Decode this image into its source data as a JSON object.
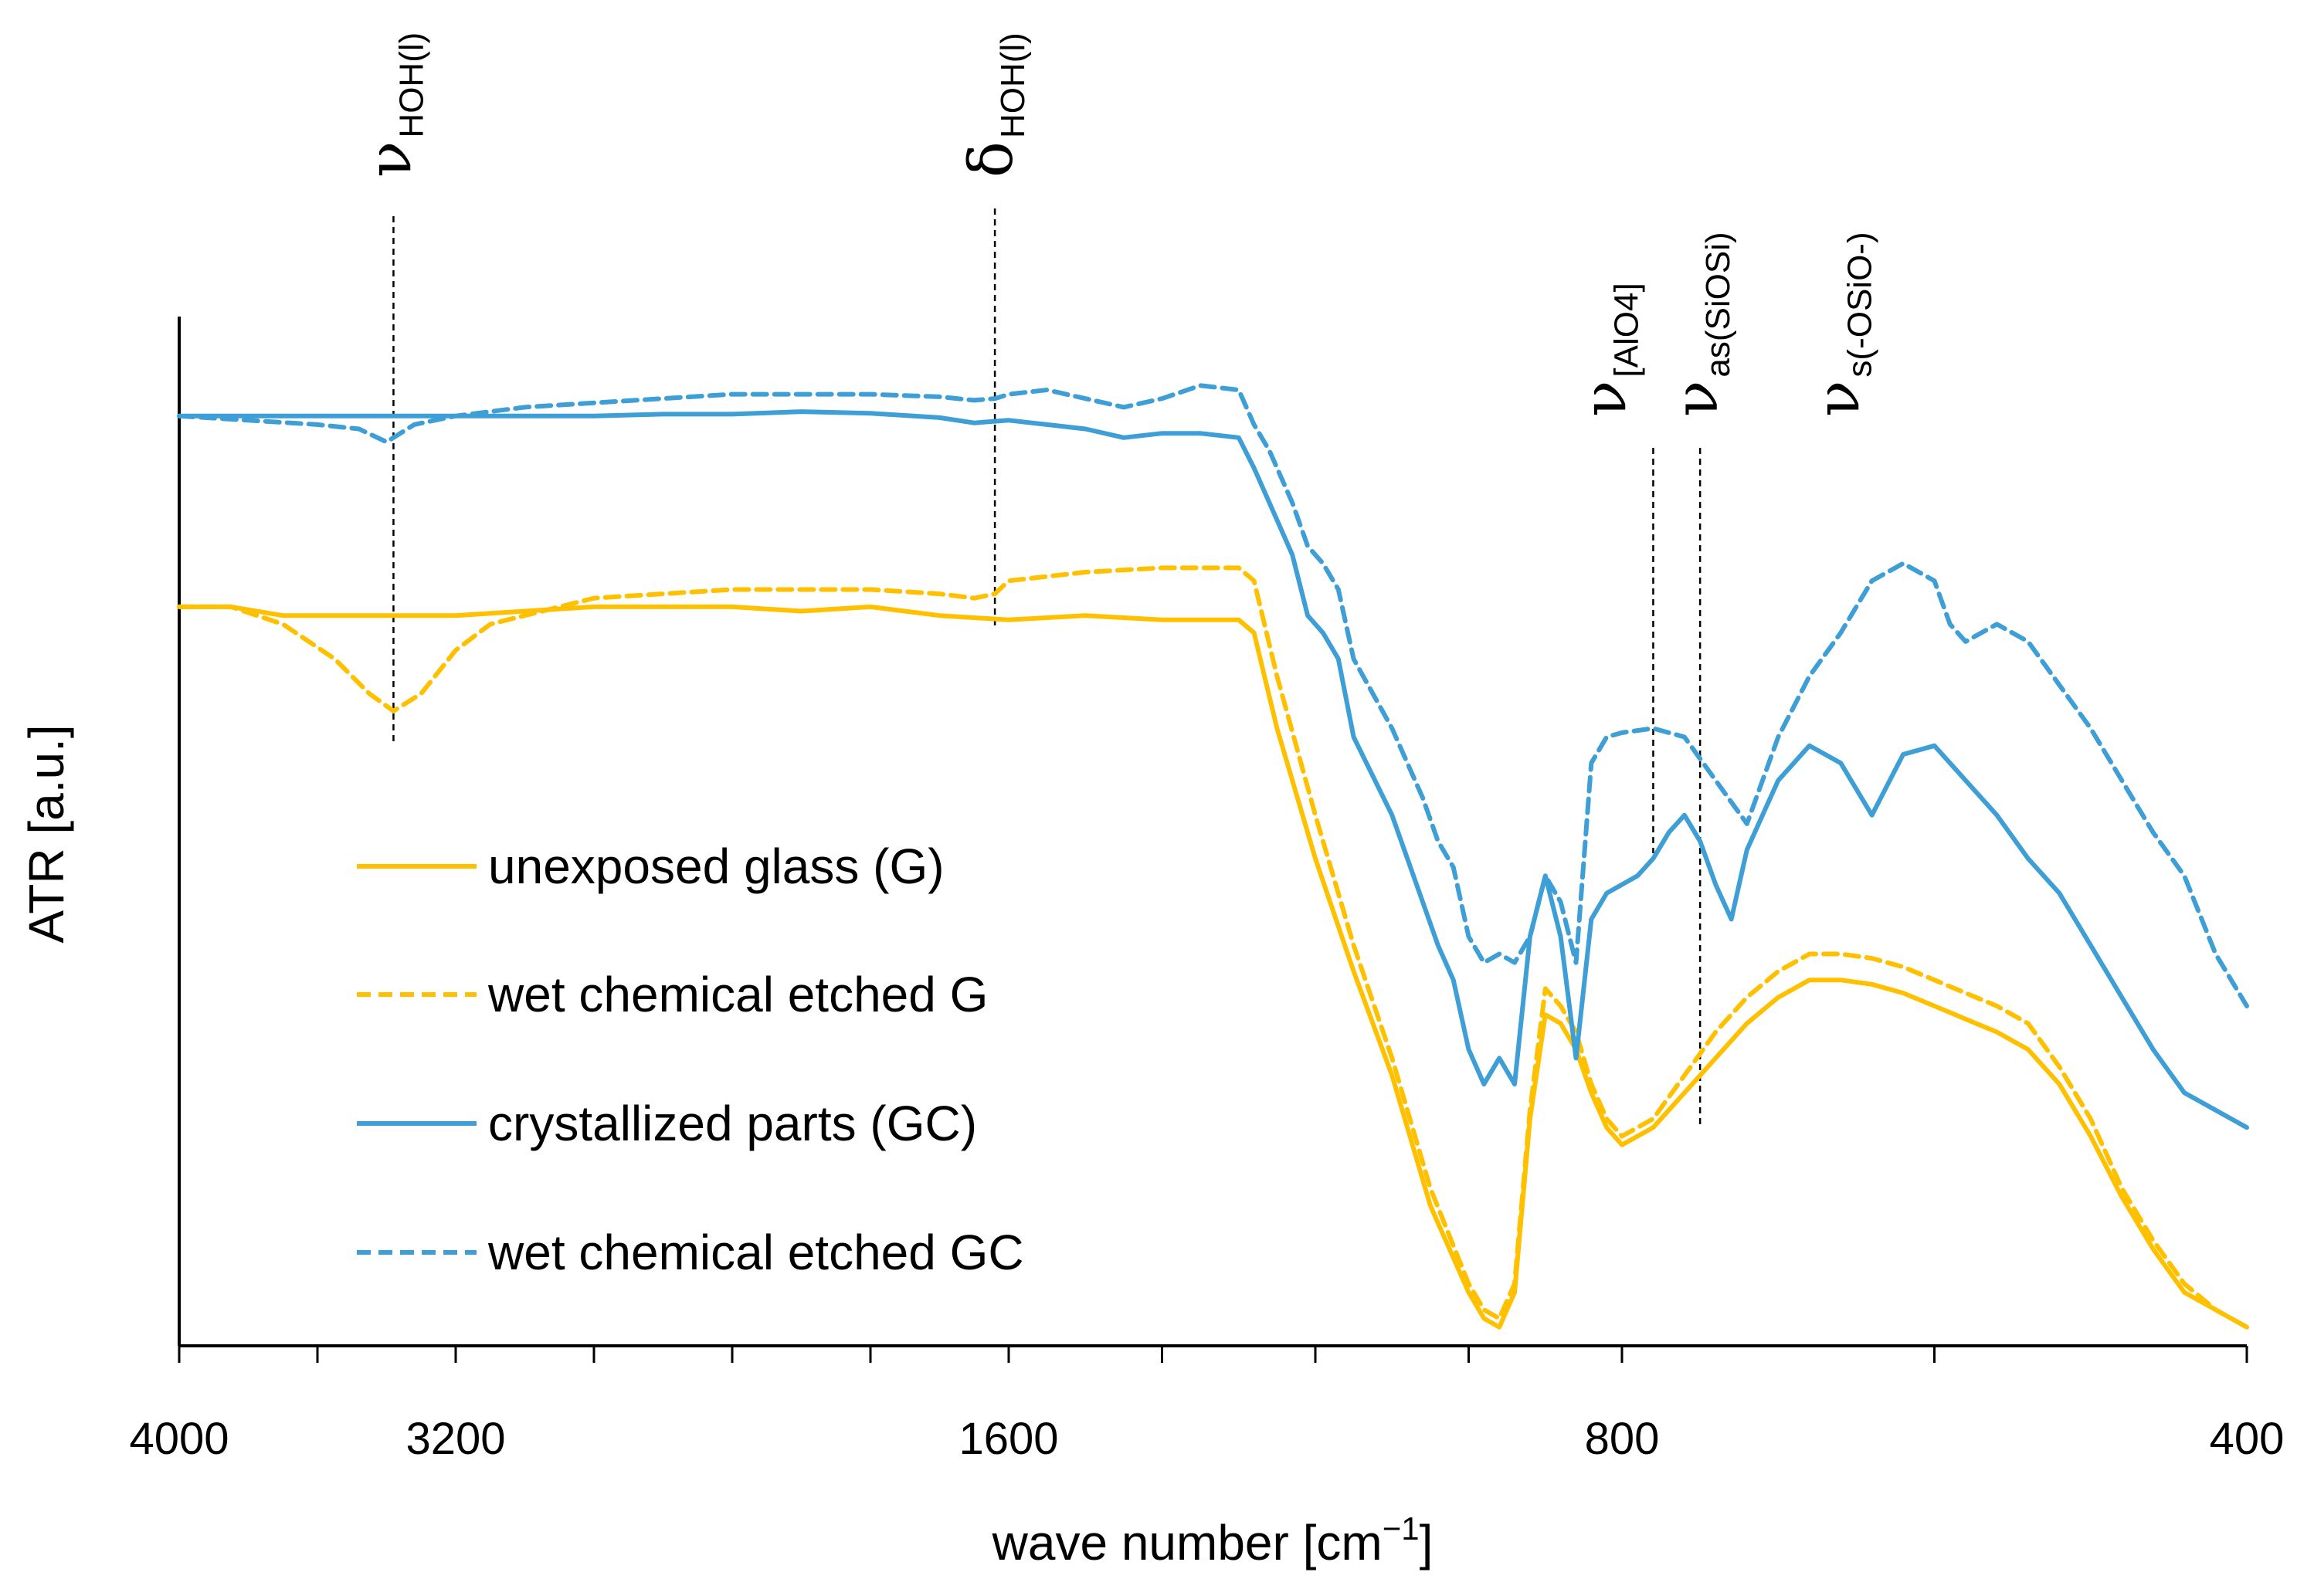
{
  "chart_data": {
    "type": "line",
    "xlabel_main": "wave number [cm",
    "xlabel_sup": "−1",
    "xlabel_end": "]",
    "ylabel": "ATR [a.u.]",
    "x_scale": "piecewise-linear (4000–1600, 1600–800, 800–400)",
    "x_ticks": [
      {
        "value": 4000,
        "label": "4000"
      },
      {
        "value": 3200,
        "label": "3200"
      },
      {
        "value": 1600,
        "label": "1600"
      },
      {
        "value": 800,
        "label": "800"
      },
      {
        "value": 400,
        "label": "400"
      }
    ],
    "minor_ticks": [
      3600,
      2800,
      2400,
      2000,
      1400,
      1200,
      1000,
      600
    ],
    "annotations": [
      {
        "wavenumber": 3380,
        "symbol": "ν",
        "subscript": "HOH(l)"
      },
      {
        "wavenumber": 1640,
        "symbol": "δ",
        "subscript": "HOH(l)"
      },
      {
        "wavenumber": 780,
        "symbol": "ν",
        "subscript": "[AlO4]"
      },
      {
        "wavenumber": 750,
        "symbol": "ν",
        "subscript": "as(SiOSi)"
      },
      {
        "wavenumber": 700,
        "symbol": "ν",
        "subscript": "s(-OSiO-)"
      }
    ],
    "colors": {
      "glass": "#FFC000",
      "gc": "#3E9ED6"
    },
    "series": [
      {
        "name": "unexposed glass (G)",
        "color": "#FFC000",
        "dash": "solid",
        "x": [
          4000,
          3850,
          3700,
          3500,
          3400,
          3200,
          3000,
          2800,
          2600,
          2400,
          2200,
          2000,
          1800,
          1600,
          1500,
          1400,
          1300,
          1280,
          1250,
          1200,
          1150,
          1100,
          1050,
          1000,
          980,
          960,
          940,
          920,
          900,
          880,
          860,
          840,
          820,
          800,
          780,
          760,
          740,
          720,
          700,
          680,
          660,
          640,
          620,
          600,
          580,
          560,
          540,
          520,
          500,
          480,
          460,
          440,
          420,
          400
        ],
        "y": [
          84,
          84,
          83,
          83,
          83,
          83,
          83.5,
          84,
          84,
          84,
          83.5,
          84,
          83,
          82.5,
          83,
          82.5,
          82.5,
          81,
          70,
          55,
          42,
          30,
          15,
          5,
          2,
          1,
          5,
          25,
          37,
          36,
          33,
          28,
          24,
          22,
          24,
          28,
          32,
          36,
          39,
          41,
          41,
          40.5,
          39.5,
          38,
          36.5,
          35,
          33,
          29,
          23,
          16,
          10,
          5,
          3,
          1
        ]
      },
      {
        "name": "wet chemical etched G",
        "color": "#FFC000",
        "dash": "dashed",
        "x": [
          4000,
          3850,
          3700,
          3550,
          3450,
          3380,
          3300,
          3200,
          3100,
          3000,
          2800,
          2600,
          2400,
          2200,
          2000,
          1800,
          1700,
          1640,
          1600,
          1500,
          1400,
          1300,
          1280,
          1250,
          1200,
          1150,
          1100,
          1050,
          1000,
          980,
          960,
          940,
          920,
          900,
          880,
          860,
          840,
          820,
          800,
          780,
          760,
          740,
          720,
          700,
          680,
          660,
          640,
          620,
          600,
          580,
          560,
          540,
          520,
          500,
          480,
          460,
          440,
          420,
          400
        ],
        "y": [
          84,
          84,
          82,
          78,
          74,
          72,
          74,
          79,
          82,
          83,
          85,
          85.5,
          86,
          86,
          86,
          85.5,
          85,
          85.5,
          87,
          88,
          88.5,
          88.5,
          87,
          76,
          60,
          45,
          32,
          17,
          6,
          3,
          2,
          6,
          26,
          40,
          38,
          35,
          29,
          25,
          23,
          25,
          30,
          35,
          39,
          42,
          44,
          44,
          43.5,
          42.5,
          41,
          39.5,
          38,
          36,
          31,
          25,
          17,
          11,
          6,
          3,
          1
        ]
      },
      {
        "name": "crystallized parts (GC)",
        "color": "#3E9ED6",
        "dash": "solid",
        "x": [
          4000,
          3800,
          3600,
          3400,
          3200,
          3000,
          2800,
          2600,
          2400,
          2200,
          2000,
          1800,
          1700,
          1600,
          1500,
          1450,
          1400,
          1350,
          1300,
          1280,
          1260,
          1230,
          1210,
          1190,
          1170,
          1150,
          1100,
          1060,
          1040,
          1020,
          1000,
          980,
          960,
          940,
          920,
          900,
          880,
          860,
          840,
          820,
          800,
          790,
          780,
          770,
          760,
          750,
          740,
          730,
          720,
          700,
          680,
          660,
          640,
          620,
          600,
          590,
          580,
          560,
          540,
          520,
          500,
          480,
          460,
          440,
          420,
          400
        ],
        "y": [
          106,
          106,
          106,
          106,
          106,
          106,
          106,
          106.2,
          106.2,
          106.5,
          106.3,
          105.8,
          105.2,
          105.5,
          104.5,
          103.5,
          104,
          104,
          103.5,
          100,
          96,
          90,
          83,
          81,
          78,
          69,
          60,
          50,
          45,
          41,
          33,
          29,
          32,
          29,
          46,
          53,
          46,
          32,
          48,
          51,
          52,
          53,
          55,
          58,
          60,
          57,
          52,
          48,
          56,
          64,
          68,
          66,
          60,
          67,
          68,
          66,
          64,
          60,
          55,
          51,
          45,
          39,
          33,
          28,
          26,
          24
        ]
      },
      {
        "name": "wet chemical etched GC",
        "color": "#3E9ED6",
        "dash": "dashed",
        "x": [
          4000,
          3800,
          3600,
          3480,
          3400,
          3320,
          3200,
          3000,
          2800,
          2600,
          2400,
          2200,
          2000,
          1800,
          1700,
          1640,
          1600,
          1550,
          1500,
          1450,
          1400,
          1350,
          1300,
          1280,
          1260,
          1230,
          1210,
          1190,
          1170,
          1150,
          1100,
          1060,
          1040,
          1020,
          1000,
          980,
          960,
          940,
          920,
          900,
          880,
          860,
          840,
          820,
          800,
          780,
          760,
          740,
          720,
          700,
          680,
          660,
          640,
          620,
          600,
          590,
          580,
          560,
          540,
          520,
          500,
          480,
          460,
          440,
          420,
          400
        ],
        "y": [
          106,
          105.5,
          105,
          104.5,
          103,
          105,
          106,
          107,
          107.5,
          108,
          108.5,
          108.5,
          108.5,
          108.2,
          107.8,
          108,
          108.5,
          109,
          108,
          107,
          108,
          109.5,
          109,
          105,
          102,
          96,
          91,
          89,
          86,
          78,
          70,
          62,
          57,
          54,
          46,
          43,
          44,
          43,
          46,
          53,
          50,
          43,
          66,
          69,
          69.5,
          70,
          69,
          64,
          59,
          69,
          76,
          81,
          87,
          89,
          87,
          82,
          80,
          82,
          80,
          75,
          70,
          64,
          58,
          53,
          44,
          38
        ]
      }
    ],
    "ylim": [
      0,
      113
    ],
    "legend": {
      "location": "center-left"
    }
  }
}
